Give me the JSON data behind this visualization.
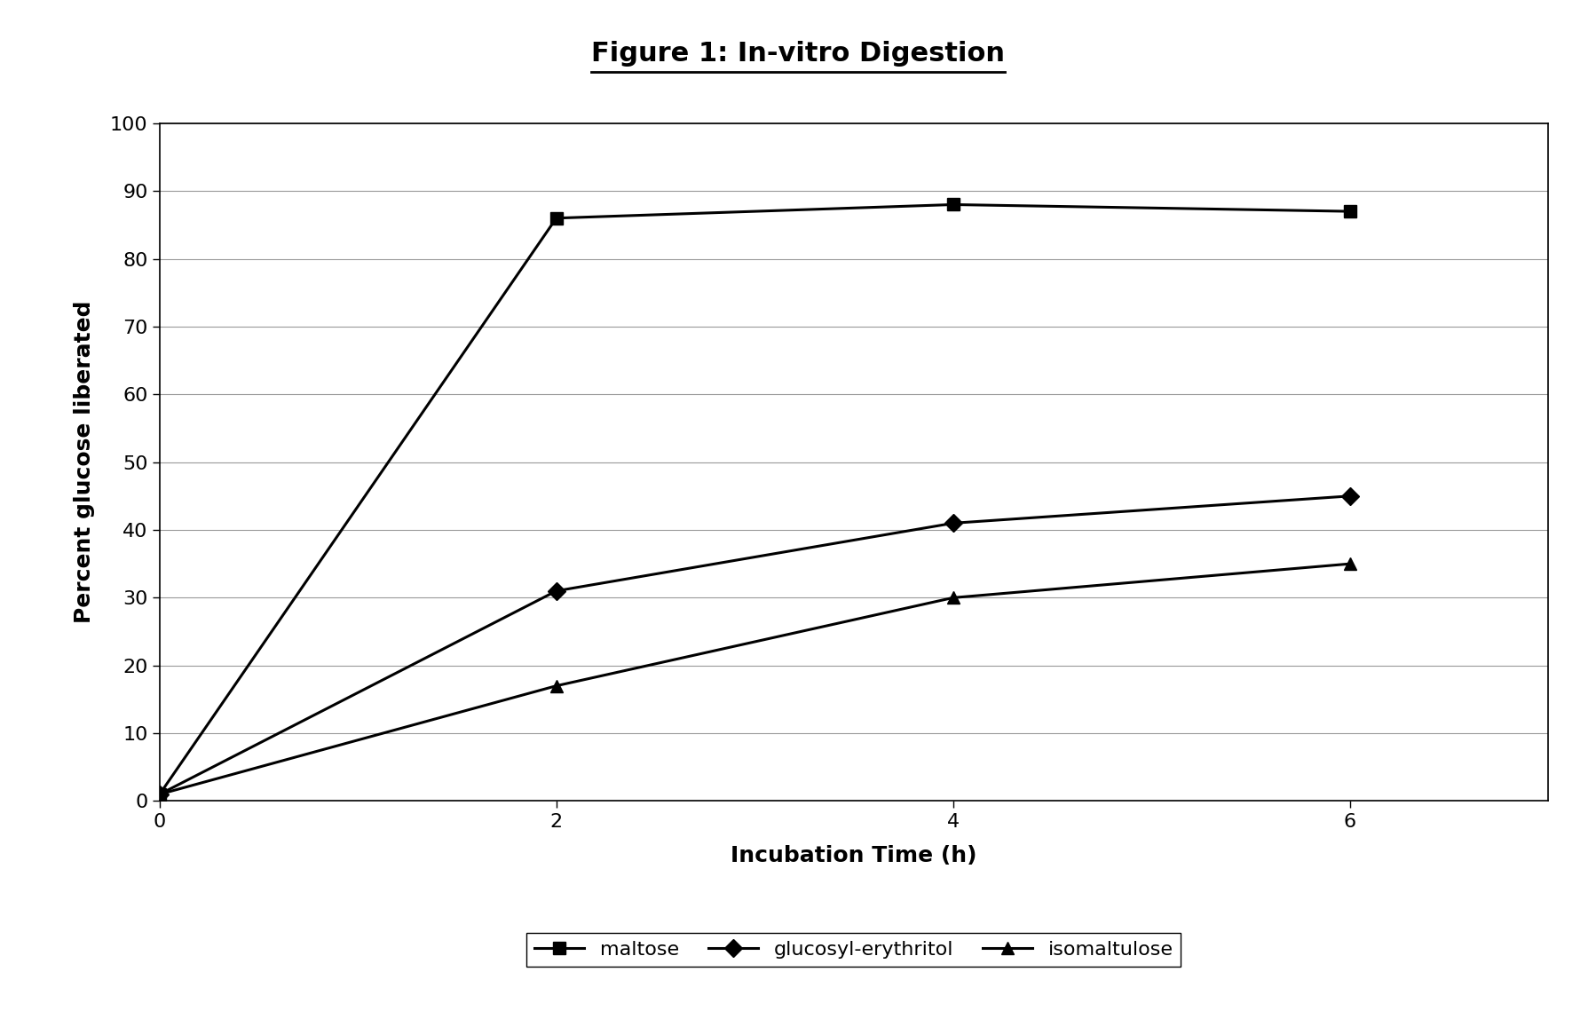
{
  "title": "Figure 1: In-vitro Digestion",
  "xlabel": "Incubation Time (h)",
  "ylabel": "Percent glucose liberated",
  "xlim": [
    0,
    7
  ],
  "ylim": [
    0,
    100
  ],
  "xticks": [
    0,
    2,
    4,
    6
  ],
  "yticks": [
    0,
    10,
    20,
    30,
    40,
    50,
    60,
    70,
    80,
    90,
    100
  ],
  "series": [
    {
      "label": "maltose",
      "x": [
        0,
        2,
        4,
        6
      ],
      "y": [
        1,
        86,
        88,
        87
      ],
      "marker": "s",
      "color": "#000000",
      "linewidth": 2.2,
      "markersize": 10
    },
    {
      "label": "glucosyl-erythritol",
      "x": [
        0,
        2,
        4,
        6
      ],
      "y": [
        1,
        31,
        41,
        45
      ],
      "marker": "D",
      "color": "#000000",
      "linewidth": 2.2,
      "markersize": 10
    },
    {
      "label": "isomaltulose",
      "x": [
        0,
        2,
        4,
        6
      ],
      "y": [
        1,
        17,
        30,
        35
      ],
      "marker": "^",
      "color": "#000000",
      "linewidth": 2.2,
      "markersize": 10
    }
  ],
  "title_fontsize": 22,
  "title_fontweight": "bold",
  "axis_label_fontsize": 18,
  "axis_label_fontweight": "bold",
  "tick_fontsize": 16,
  "legend_fontsize": 16,
  "background_color": "#ffffff",
  "grid_color": "#999999",
  "grid_linewidth": 0.8
}
